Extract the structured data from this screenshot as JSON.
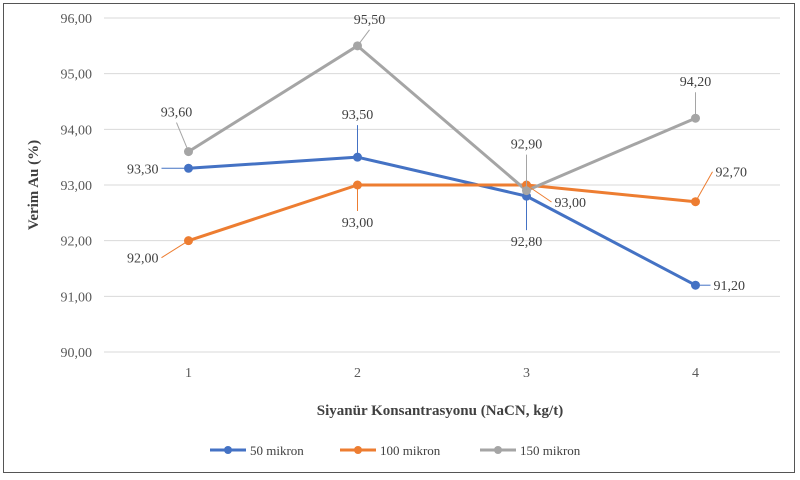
{
  "chart_data": {
    "type": "line",
    "title": "",
    "xlabel": "Siyanür Konsantrasyonu (NaCN, kg/t)",
    "ylabel": "Verim Au (%)",
    "categories": [
      "1",
      "2",
      "3",
      "4"
    ],
    "ylim": [
      90,
      96
    ],
    "yticks": [
      "90,00",
      "91,00",
      "92,00",
      "93,00",
      "94,00",
      "95,00",
      "96,00"
    ],
    "grid": true,
    "legend_position": "bottom",
    "series": [
      {
        "name": "50 mikron",
        "color": "#4472C4",
        "values": [
          93.3,
          93.5,
          92.8,
          91.2
        ],
        "labels": [
          "93,30",
          "93,50",
          "92,80",
          "91,20"
        ]
      },
      {
        "name": "100 mikron",
        "color": "#ED7D31",
        "values": [
          92.0,
          93.0,
          93.0,
          92.7
        ],
        "labels": [
          "92,00",
          "93,00",
          "93,00",
          "92,70"
        ]
      },
      {
        "name": "150 mikron",
        "color": "#A5A5A5",
        "values": [
          93.6,
          95.5,
          92.9,
          94.2
        ],
        "labels": [
          "93,60",
          "95,50",
          "92,90",
          "94,20"
        ]
      }
    ]
  }
}
